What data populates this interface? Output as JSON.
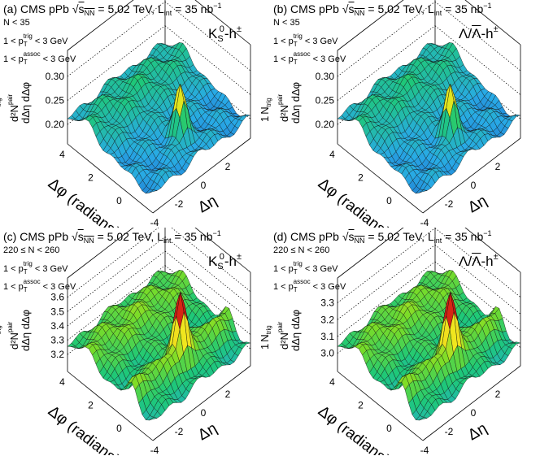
{
  "figure": {
    "experiment": "CMS",
    "system": "pPb",
    "energy": "5.02 TeV",
    "luminosity": "35 nb"
  },
  "common": {
    "title_prefix": "CMS pPb",
    "sqrt": "√",
    "s": "s",
    "nn": "NN",
    "eq_energy": " = 5.02 TeV, L",
    "int": "int",
    "eq_lumi": " = 35 nb",
    "lumi_exp": "−1",
    "trig_line_1": "1 < p",
    "trig_T": "T",
    "trig_sup": "trig",
    "trig_line_2": " < 3 GeV",
    "assoc_sup": "assoc",
    "yaxis_num": "d²N",
    "yaxis_pair": "pair",
    "yaxis_den": "dΔη dΔφ",
    "yaxis_one": "1",
    "yaxis_N": "N",
    "yaxis_trig": "trig",
    "xaxis_phi": "Δφ (radians)",
    "xaxis_eta": "Δη",
    "phi_ticks": [
      "4",
      "2",
      "0"
    ],
    "eta_ticks": [
      "-4",
      "-2",
      "0",
      "2"
    ]
  },
  "chart_data": [
    {
      "type": "surface3d",
      "label": "(a)",
      "multiplicity": "N < 35",
      "species": "Ks0-h±",
      "species_main": "K",
      "species_sub": "S",
      "species_sup": "0",
      "species_tail": "-h",
      "species_tail_sup": "±",
      "zticks": [
        "0.30",
        "0.25",
        "0.20"
      ],
      "zrange": [
        0.18,
        0.32
      ],
      "peak": {
        "deta": 0,
        "dphi": 0
      }
    },
    {
      "type": "surface3d",
      "label": "(b)",
      "multiplicity": "N < 35",
      "species": "Λ/Λ̄-h±",
      "species_main": "Λ/",
      "species_bar": "Λ",
      "species_tail": "-h",
      "species_tail_sup": "±",
      "zticks": [
        "0.30",
        "0.25",
        "0.20"
      ],
      "zrange": [
        0.18,
        0.32
      ],
      "peak": {
        "deta": 0,
        "dphi": 0
      }
    },
    {
      "type": "surface3d",
      "label": "(c)",
      "multiplicity": "220 ≤ N < 260",
      "species": "Ks0-h±",
      "species_main": "K",
      "species_sub": "S",
      "species_sup": "0",
      "species_tail": "-h",
      "species_tail_sup": "±",
      "zticks": [
        "3.6",
        "3.5",
        "3.4",
        "3.3",
        "3.2"
      ],
      "zrange": [
        3.15,
        3.62
      ],
      "peak": {
        "deta": 0,
        "dphi": 0
      },
      "ridge": {
        "dphi": 0
      }
    },
    {
      "type": "surface3d",
      "label": "(d)",
      "multiplicity": "220 ≤ N < 260",
      "species": "Λ/Λ̄-h±",
      "species_main": "Λ/",
      "species_bar": "Λ",
      "species_tail": "-h",
      "species_tail_sup": "±",
      "zticks": [
        "3.3",
        "3.2",
        "3.1",
        "3.0"
      ],
      "zrange": [
        2.95,
        3.35
      ],
      "peak": {
        "deta": 0,
        "dphi": 0
      },
      "ridge": {
        "dphi": 0
      }
    }
  ]
}
